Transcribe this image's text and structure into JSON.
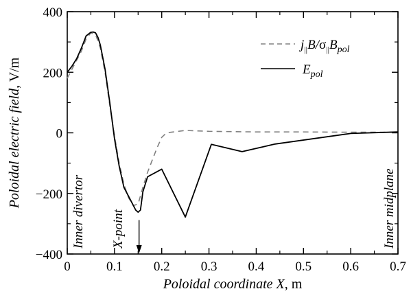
{
  "chart_data": {
    "type": "line",
    "xlabel_italic": "Poloidal coordinate X",
    "xlabel_unit": ", m",
    "ylabel_italic": "Poloidal electric field",
    "ylabel_unit": ", V/m",
    "xlim": [
      0,
      0.7
    ],
    "ylim": [
      -400,
      400
    ],
    "x_ticks": [
      0,
      0.1,
      0.2,
      0.3,
      0.4,
      0.5,
      0.6,
      0.7
    ],
    "x_tick_labels": [
      "0",
      "0.1",
      "0.2",
      "0.3",
      "0.4",
      "0.5",
      "0.6",
      "0.7"
    ],
    "y_ticks": [
      -400,
      -200,
      0,
      200,
      400
    ],
    "y_tick_labels": [
      "−400",
      "−200",
      "0",
      "200",
      "400"
    ],
    "grid": false,
    "legend_position": "top-right",
    "series": [
      {
        "key": "jB",
        "legend": {
          "j": "j",
          "sub_par": "||",
          "B": "B/",
          "sigma": "σ",
          "sub_par2": "||",
          "B2": "B",
          "sub_pol": "pol"
        },
        "style": "dashed",
        "color": "#808080",
        "x": [
          0,
          0.01,
          0.02,
          0.03,
          0.04,
          0.05,
          0.06,
          0.07,
          0.08,
          0.09,
          0.1,
          0.11,
          0.12,
          0.13,
          0.14,
          0.15,
          0.16,
          0.17,
          0.18,
          0.19,
          0.2,
          0.21,
          0.25,
          0.3,
          0.4,
          0.5,
          0.6,
          0.7
        ],
        "y": [
          180,
          210,
          240,
          270,
          310,
          330,
          325,
          280,
          200,
          90,
          -10,
          -100,
          -170,
          -215,
          -240,
          -235,
          -180,
          -130,
          -90,
          -50,
          -15,
          0,
          8,
          5,
          3,
          3,
          2,
          2
        ]
      },
      {
        "key": "Epol",
        "legend": {
          "E": "E",
          "sub": "pol"
        },
        "style": "solid",
        "color": "#000000",
        "x": [
          0,
          0.01,
          0.02,
          0.03,
          0.04,
          0.05,
          0.055,
          0.06,
          0.065,
          0.07,
          0.08,
          0.09,
          0.1,
          0.11,
          0.12,
          0.13,
          0.14,
          0.145,
          0.15,
          0.155,
          0.16,
          0.17,
          0.2,
          0.25,
          0.305,
          0.37,
          0.44,
          0.6,
          0.7
        ],
        "y": [
          200,
          220,
          245,
          280,
          320,
          332,
          333,
          330,
          315,
          290,
          210,
          100,
          -20,
          -110,
          -180,
          -210,
          -240,
          -255,
          -262,
          -255,
          -195,
          -145,
          -120,
          -278,
          -38,
          -62,
          -37,
          -2,
          3
        ]
      }
    ],
    "annotations": {
      "inner_divertor": "Inner divertor",
      "x_point": "X-point",
      "inner_midplane": "Inner midplane",
      "arrow": {
        "x": 0.152,
        "y_from": -288,
        "y_to": -400
      }
    }
  }
}
